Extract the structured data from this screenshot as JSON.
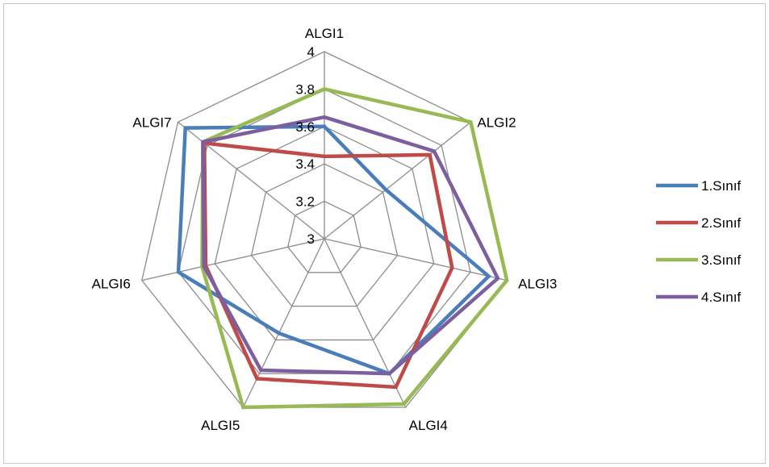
{
  "chart_data": {
    "type": "radar",
    "title": "",
    "axes": [
      "ALGI1",
      "ALGI2",
      "ALGI3",
      "ALGI4",
      "ALGI5",
      "ALGI6",
      "ALGI7"
    ],
    "rlim": [
      3,
      4
    ],
    "ticks": [
      "3",
      "3.2",
      "3.4",
      "3.6",
      "3.8",
      "4"
    ],
    "grid": true,
    "legend_position": "right",
    "series": [
      {
        "name": "1.Sınıf",
        "color": "#4a7ebb",
        "values": [
          3.6,
          3.42,
          3.9,
          3.8,
          3.56,
          3.8,
          3.95
        ]
      },
      {
        "name": "2.Sınıf",
        "color": "#be4b48",
        "values": [
          3.44,
          3.72,
          3.7,
          3.88,
          3.83,
          3.65,
          3.82
        ]
      },
      {
        "name": "3.Sınıf",
        "color": "#98b954",
        "values": [
          3.8,
          4.0,
          4.0,
          3.98,
          4.0,
          3.67,
          3.83
        ]
      },
      {
        "name": "4.Sınıf",
        "color": "#7d5fa0",
        "values": [
          3.65,
          3.75,
          3.95,
          3.8,
          3.78,
          3.66,
          3.83
        ]
      }
    ]
  }
}
